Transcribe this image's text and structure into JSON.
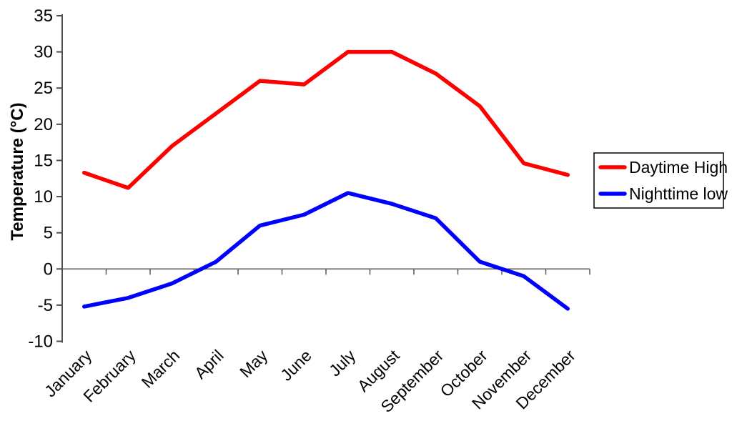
{
  "chart_data": {
    "type": "line",
    "categories": [
      "January",
      "February",
      "March",
      "April",
      "May",
      "June",
      "July",
      "August",
      "September",
      "October",
      "November",
      "December"
    ],
    "series": [
      {
        "name": "Daytime High",
        "color": "#FF0000",
        "values": [
          13.3,
          11.2,
          17,
          21.5,
          26,
          25.5,
          30,
          30,
          27,
          22.5,
          14.6,
          13
        ]
      },
      {
        "name": "Nighttime low",
        "color": "#0000FF",
        "values": [
          -5.2,
          -4,
          -2,
          1,
          6,
          7.5,
          10.5,
          9,
          7,
          1,
          -1,
          -5.5
        ]
      }
    ],
    "title": "",
    "xlabel": "",
    "ylabel": "Temperature (°C)",
    "ylim": [
      -10,
      35
    ],
    "ytick_step": 5,
    "ytick_labels": [
      "-10",
      "-5",
      "0",
      "5",
      "10",
      "15",
      "20",
      "25",
      "30",
      "35"
    ],
    "grid": "zero-line-only",
    "legend_position": "right"
  },
  "colors": {
    "axis": "#4d4d4d",
    "zero_line": "#595959",
    "legend_border": "#000000",
    "background": "#FFFFFF"
  }
}
